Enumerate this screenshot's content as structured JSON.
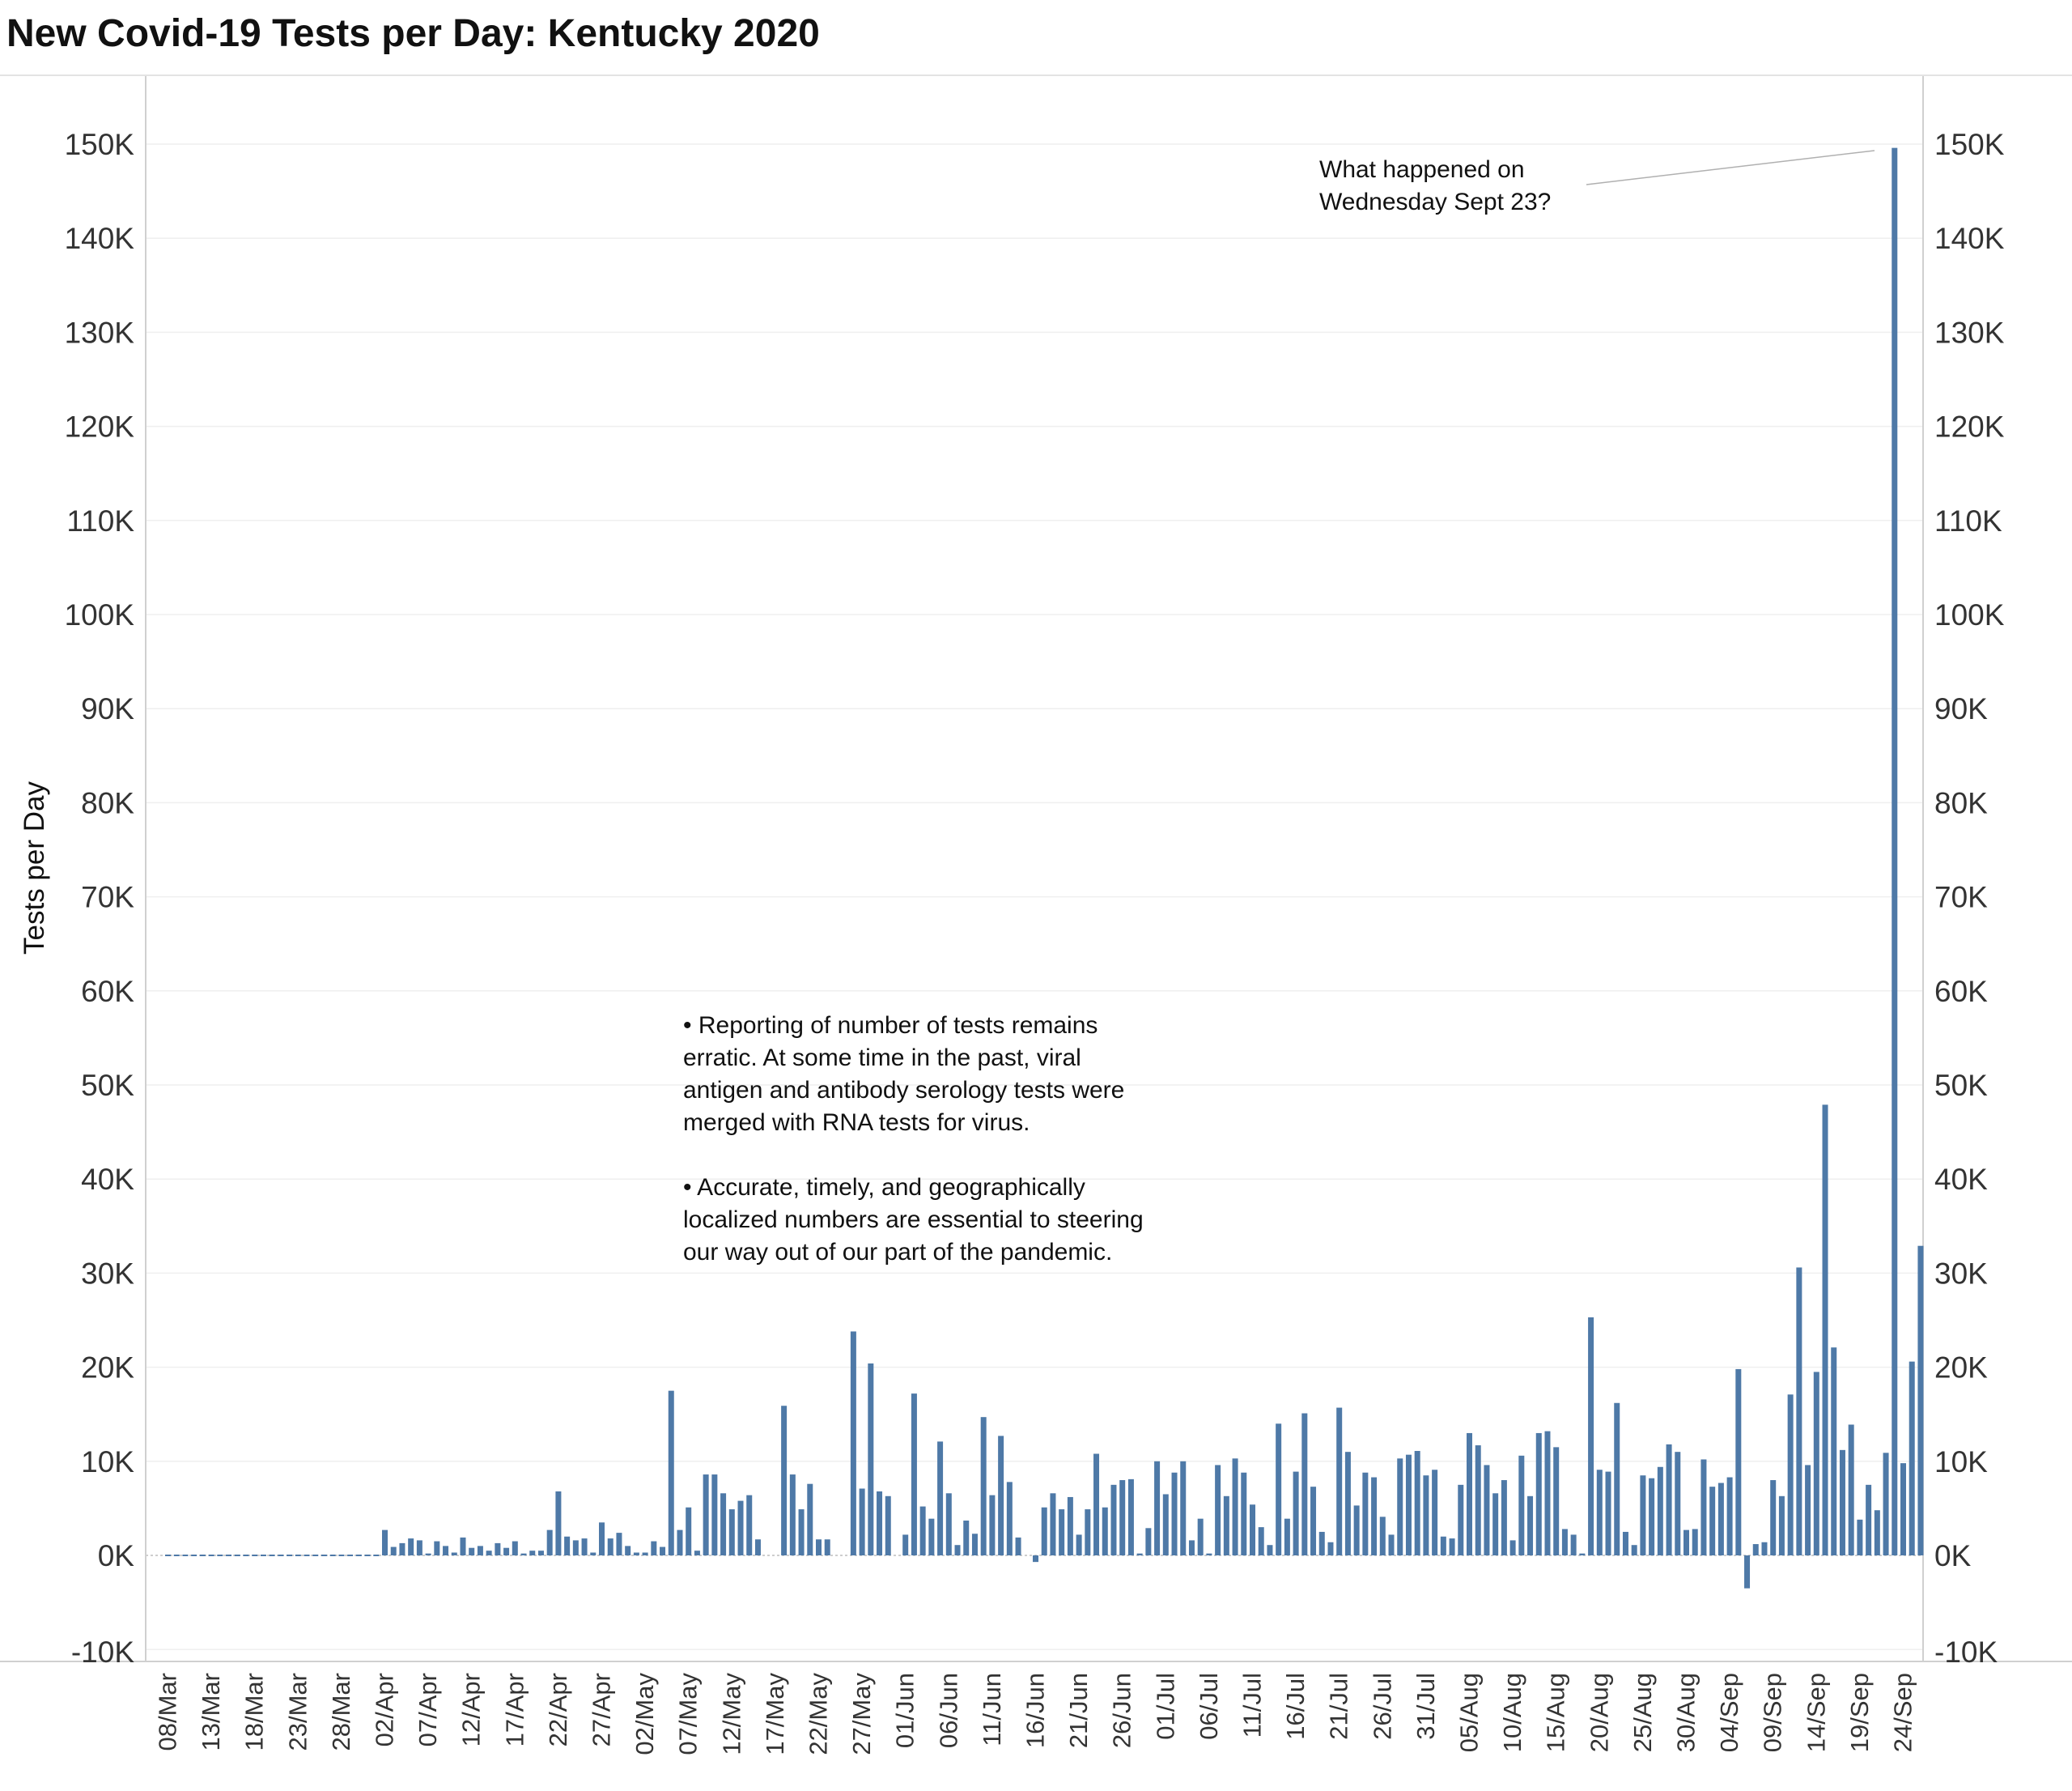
{
  "title": "New Covid-19 Tests per Day:  Kentucky 2020",
  "chart_data": {
    "type": "bar",
    "title": "New Covid-19 Tests per Day:  Kentucky 2020",
    "ylabel": "Tests per Day",
    "xlabel": "",
    "ylim": [
      -11000,
      151000
    ],
    "yticks": [
      -10000,
      0,
      10000,
      20000,
      30000,
      40000,
      50000,
      60000,
      70000,
      80000,
      90000,
      100000,
      110000,
      120000,
      130000,
      140000,
      150000
    ],
    "ytick_labels": [
      "-10K",
      "0K",
      "10K",
      "20K",
      "30K",
      "40K",
      "50K",
      "60K",
      "70K",
      "80K",
      "90K",
      "100K",
      "110K",
      "120K",
      "130K",
      "140K",
      "150K"
    ],
    "x_start": "2020-03-08",
    "x_tick_labels": [
      "08/Mar",
      "13/Mar",
      "18/Mar",
      "23/Mar",
      "28/Mar",
      "02/Apr",
      "07/Apr",
      "12/Apr",
      "17/Apr",
      "22/Apr",
      "27/Apr",
      "02/May",
      "07/May",
      "12/May",
      "17/May",
      "22/May",
      "27/May",
      "01/Jun",
      "06/Jun",
      "11/Jun",
      "16/Jun",
      "21/Jun",
      "26/Jun",
      "01/Jul",
      "06/Jul",
      "11/Jul",
      "16/Jul",
      "21/Jul",
      "26/Jul",
      "31/Jul",
      "05/Aug",
      "10/Aug",
      "15/Aug",
      "20/Aug",
      "25/Aug",
      "30/Aug",
      "04/Sep",
      "09/Sep",
      "14/Sep",
      "19/Sep",
      "24/Sep"
    ],
    "bar_color": "#4e79a7",
    "grid": true,
    "dual_y_axis": true,
    "values": [
      0,
      0,
      0,
      0,
      0,
      0,
      0,
      0,
      0,
      0,
      0,
      0,
      0,
      0,
      0,
      0,
      0,
      0,
      0,
      0,
      0,
      0,
      0,
      0,
      0,
      2700,
      900,
      1300,
      1800,
      1600,
      200,
      1500,
      1000,
      300,
      1900,
      800,
      1000,
      500,
      1300,
      800,
      1500,
      200,
      500,
      500,
      2700,
      6800,
      2000,
      1600,
      1800,
      300,
      3500,
      1800,
      2400,
      1000,
      300,
      300,
      1500,
      900,
      17500,
      2700,
      5100,
      500,
      8600,
      8600,
      6600,
      4900,
      5800,
      6400,
      1700,
      0,
      0,
      15900,
      8600,
      4900,
      7600,
      1700,
      1700,
      0,
      0,
      23800,
      7100,
      20400,
      6800,
      6300,
      0,
      2200,
      17200,
      5200,
      3900,
      12100,
      6600,
      1100,
      3700,
      2300,
      14700,
      6400,
      12700,
      7800,
      1900,
      0,
      -700,
      5100,
      6600,
      4900,
      6200,
      2200,
      4900,
      10800,
      5100,
      7500,
      8000,
      8100,
      200,
      2900,
      10000,
      6500,
      8800,
      10000,
      1600,
      3900,
      200,
      9600,
      6300,
      10300,
      8800,
      5400,
      3000,
      1100,
      14000,
      3900,
      8900,
      15100,
      7300,
      2500,
      1400,
      15700,
      11000,
      5300,
      8800,
      8300,
      4100,
      2200,
      10300,
      10700,
      11100,
      8500,
      9100,
      2000,
      1800,
      7500,
      13000,
      11700,
      9600,
      6600,
      8000,
      1600,
      10600,
      6300,
      13000,
      13200,
      11500,
      2800,
      2200,
      200,
      25300,
      9100,
      8900,
      16200,
      2500,
      1100,
      8500,
      8200,
      9400,
      11800,
      11000,
      2700,
      2800,
      10200,
      7300,
      7700,
      8300,
      19800,
      -3500,
      1200,
      1400,
      8000,
      6300,
      17100,
      30600,
      9600,
      19500,
      47900,
      22100,
      11200,
      13900,
      3800,
      7500,
      4800,
      10900,
      149600,
      9800,
      20600,
      32900
    ]
  },
  "annotations": {
    "spike_note": [
      "What happened on",
      "Wednesday Sept 23?"
    ],
    "notes": [
      [
        "• Reporting of number of tests remains",
        "erratic. At some time in the past, viral",
        "antigen and antibody serology tests were",
        "merged with RNA tests for virus."
      ],
      [
        "• Accurate, timely, and geographically",
        "localized numbers are essential to steering",
        "our way out of our part of the pandemic."
      ]
    ]
  }
}
